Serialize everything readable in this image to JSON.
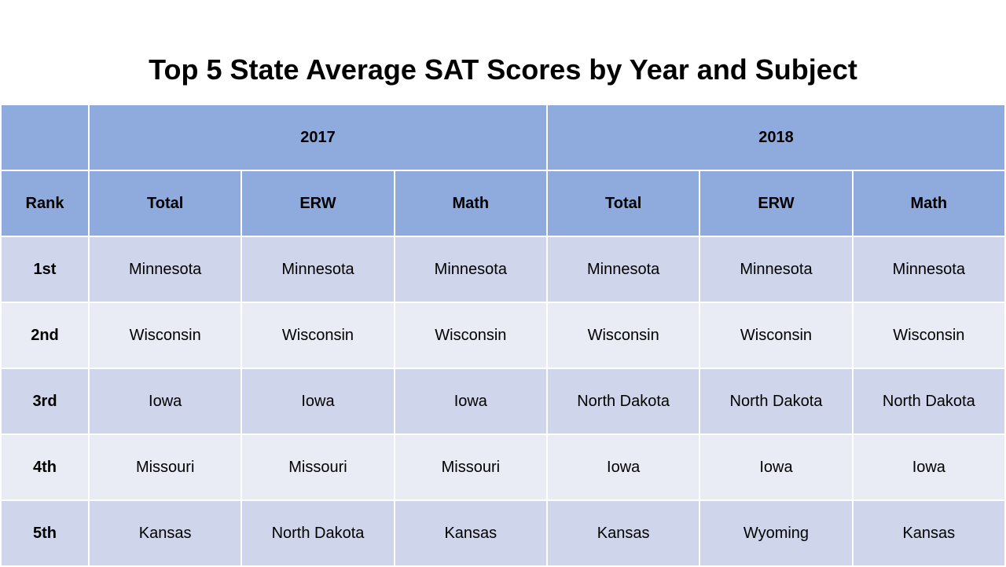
{
  "title": "Top 5 State Average SAT Scores by Year and Subject",
  "table": {
    "years": [
      "2017",
      "2018"
    ],
    "rank_header": "Rank",
    "subjects": [
      "Total",
      "ERW",
      "Math",
      "Total",
      "ERW",
      "Math"
    ],
    "rows": [
      {
        "rank": "1st",
        "cells": [
          "Minnesota",
          "Minnesota",
          "Minnesota",
          "Minnesota",
          "Minnesota",
          "Minnesota"
        ]
      },
      {
        "rank": "2nd",
        "cells": [
          "Wisconsin",
          "Wisconsin",
          "Wisconsin",
          "Wisconsin",
          "Wisconsin",
          "Wisconsin"
        ]
      },
      {
        "rank": "3rd",
        "cells": [
          "Iowa",
          "Iowa",
          "Iowa",
          "North Dakota",
          "North Dakota",
          "North Dakota"
        ]
      },
      {
        "rank": "4th",
        "cells": [
          "Missouri",
          "Missouri",
          "Missouri",
          "Iowa",
          "Iowa",
          "Iowa"
        ]
      },
      {
        "rank": "5th",
        "cells": [
          "Kansas",
          "North Dakota",
          "Kansas",
          "Kansas",
          "Wyoming",
          "Kansas"
        ]
      }
    ]
  },
  "colors": {
    "header": "#8faadc",
    "row_dark": "#cfd5ea",
    "row_light": "#e9ebf5"
  }
}
